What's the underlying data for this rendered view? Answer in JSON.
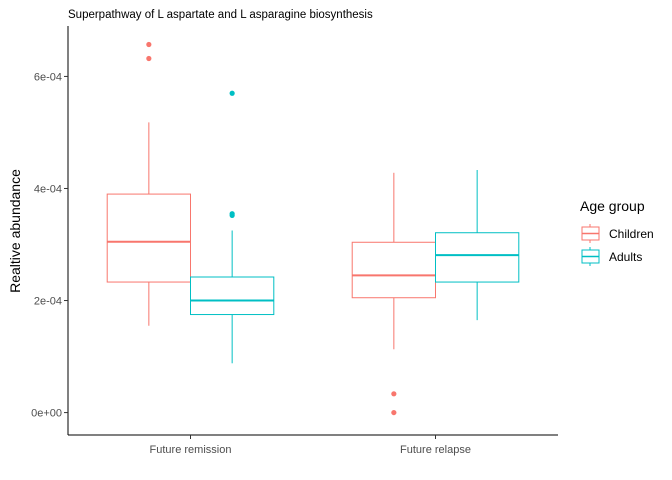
{
  "chart_data": {
    "type": "box",
    "title": "Superpathway of L aspartate and L asparagine biosynthesis",
    "xlabel": "",
    "ylabel": "Realtive abundance",
    "ylim": [
      -4e-05,
      0.00069
    ],
    "yticks": [
      0,
      0.0002,
      0.0004,
      0.0006
    ],
    "ytick_labels": [
      "0e+00",
      "2e-04",
      "4e-04",
      "6e-04"
    ],
    "categories": [
      "Future remission",
      "Future relapse"
    ],
    "legend": {
      "title": "Age group",
      "position": "right"
    },
    "grid": false,
    "series": [
      {
        "name": "Children",
        "color": "#F8766D",
        "boxes": [
          {
            "category": "Future remission",
            "whisker_low": 0.000155,
            "q1": 0.000233,
            "median": 0.000305,
            "q3": 0.00039,
            "whisker_high": 0.000518,
            "outliers": [
              0.000632,
              0.000657
            ]
          },
          {
            "category": "Future relapse",
            "whisker_low": 0.000113,
            "q1": 0.000205,
            "median": 0.000245,
            "q3": 0.000304,
            "whisker_high": 0.000428,
            "outliers": [
              3.35e-05,
              0.0
            ]
          }
        ]
      },
      {
        "name": "Adults",
        "color": "#00BFC4",
        "boxes": [
          {
            "category": "Future remission",
            "whisker_low": 8.8e-05,
            "q1": 0.000175,
            "median": 0.0002,
            "q3": 0.000242,
            "whisker_high": 0.000325,
            "outliers": [
              0.000352,
              0.000355,
              0.00057
            ]
          },
          {
            "category": "Future relapse",
            "whisker_low": 0.000165,
            "q1": 0.000233,
            "median": 0.000281,
            "q3": 0.000321,
            "whisker_high": 0.000433,
            "outliers": []
          }
        ]
      }
    ]
  }
}
